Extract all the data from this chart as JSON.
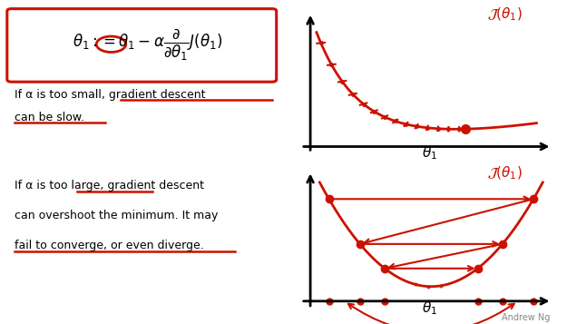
{
  "bg_color": "#ffffff",
  "red_color": "#cc1100",
  "small_text_line1": "If α is too small, gradient descent",
  "small_text_line2": "can be slow.",
  "large_text_line1": "If α is too large, gradient descent",
  "large_text_line2": "can overshoot the minimum. It may",
  "large_text_line3": "fail to converge, or even diverge.",
  "andrew_ng": "Andrew Ng"
}
